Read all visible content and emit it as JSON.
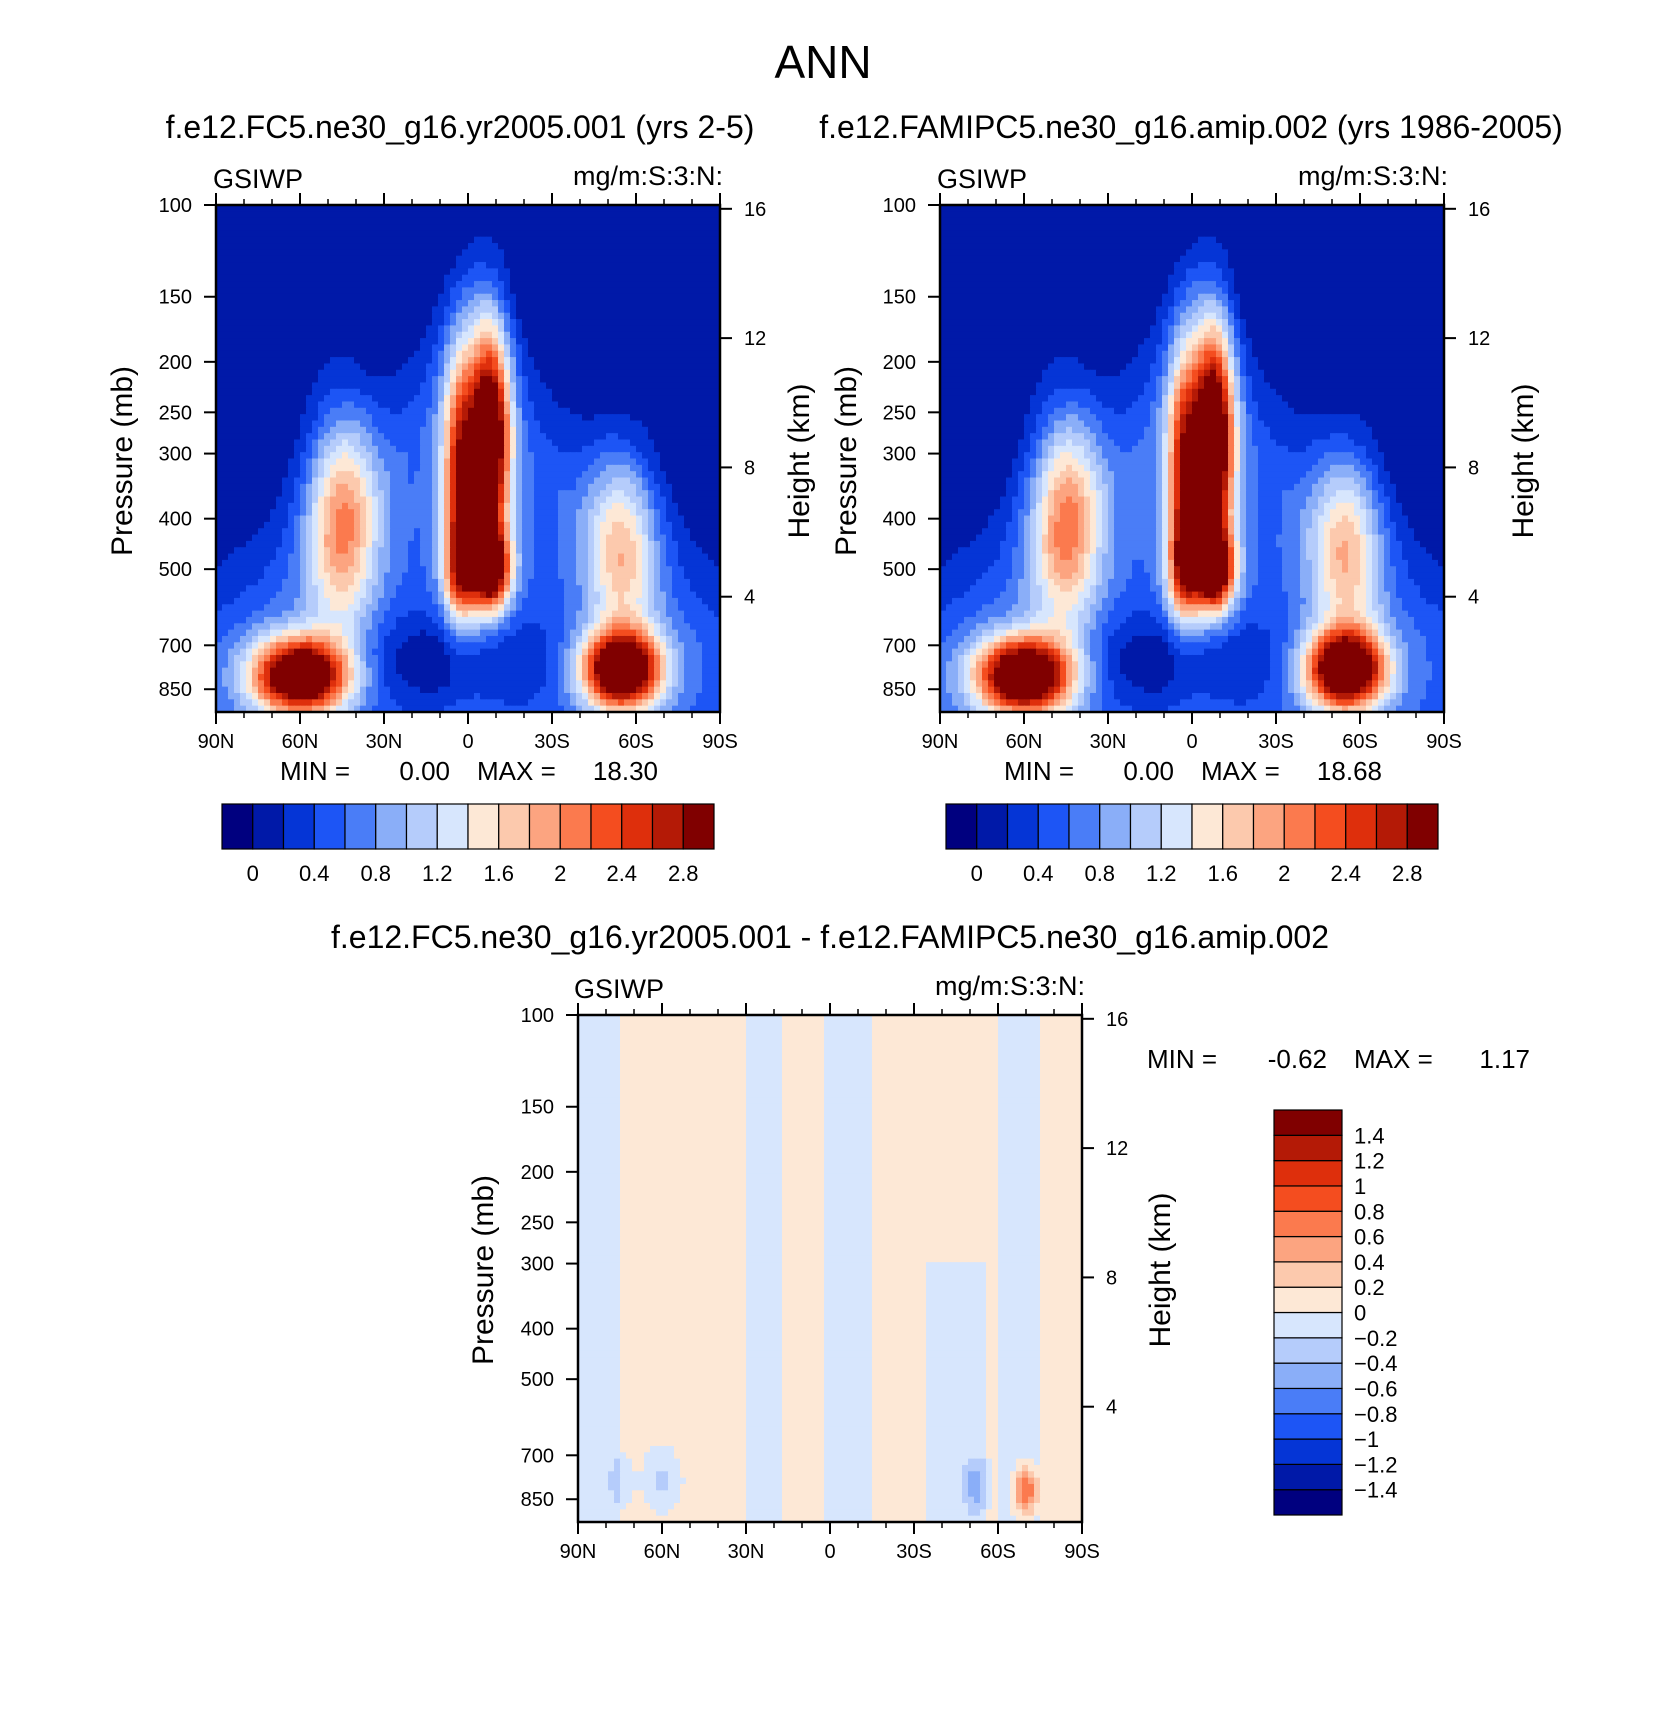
{
  "figure": {
    "title": "ANN"
  },
  "chart_data": [
    {
      "type": "heatmap",
      "id": "panel1",
      "subtitle": "f.e12.FC5.ne30_g16.yr2005.001 (yrs 2-5)",
      "left_label": "GSIWP",
      "right_label": "mg/m:S:3:N:",
      "ylabel": "Pressure (mb)",
      "y2label": "Height (km)",
      "x_ticks": [
        "90N",
        "60N",
        "30N",
        "0",
        "30S",
        "60S",
        "90S"
      ],
      "y_ticks": [
        "100",
        "150",
        "200",
        "250",
        "300",
        "400",
        "500",
        "700",
        "850"
      ],
      "y2_ticks": [
        "16",
        "12",
        "8",
        "4"
      ],
      "stats": {
        "min_label": "MIN =",
        "min": "0.00",
        "max_label": "MAX =",
        "max": "18.30"
      },
      "colorbar": {
        "orientation": "horizontal",
        "labels": [
          "0",
          "0.4",
          "0.8",
          "1.2",
          "1.6",
          "2",
          "2.4",
          "2.8"
        ],
        "colors": [
          "#00007f",
          "#0019a8",
          "#0535d6",
          "#1d55f5",
          "#4a7df7",
          "#8aaef8",
          "#b5ccfb",
          "#d7e6fd",
          "#fde8d6",
          "#fcc9ad",
          "#fca480",
          "#fb7a4e",
          "#f44d1f",
          "#de2f0c",
          "#b41a06",
          "#800000"
        ]
      },
      "features": [
        {
          "name": "tropical-upper-maximum",
          "lat": -8,
          "p": 270,
          "value": 3.0
        },
        {
          "name": "tropical-lower-maximum",
          "lat": -8,
          "p": 500,
          "value": 2.9
        },
        {
          "name": "nh-boundary-layer-maximum",
          "lat": 60,
          "p": 790,
          "value": 3.0
        },
        {
          "name": "sh-boundary-layer-maximum",
          "lat": -55,
          "p": 780,
          "value": 3.0
        }
      ]
    },
    {
      "type": "heatmap",
      "id": "panel2",
      "subtitle": "f.e12.FAMIPC5.ne30_g16.amip.002 (yrs 1986-2005)",
      "left_label": "GSIWP",
      "right_label": "mg/m:S:3:N:",
      "ylabel": "Pressure (mb)",
      "y2label": "Height (km)",
      "x_ticks": [
        "90N",
        "60N",
        "30N",
        "0",
        "30S",
        "60S",
        "90S"
      ],
      "y_ticks": [
        "100",
        "150",
        "200",
        "250",
        "300",
        "400",
        "500",
        "700",
        "850"
      ],
      "y2_ticks": [
        "16",
        "12",
        "8",
        "4"
      ],
      "stats": {
        "min_label": "MIN =",
        "min": "0.00",
        "max_label": "MAX =",
        "max": "18.68"
      },
      "colorbar": {
        "orientation": "horizontal",
        "labels": [
          "0",
          "0.4",
          "0.8",
          "1.2",
          "1.6",
          "2",
          "2.4",
          "2.8"
        ],
        "colors": [
          "#00007f",
          "#0019a8",
          "#0535d6",
          "#1d55f5",
          "#4a7df7",
          "#8aaef8",
          "#b5ccfb",
          "#d7e6fd",
          "#fde8d6",
          "#fcc9ad",
          "#fca480",
          "#fb7a4e",
          "#f44d1f",
          "#de2f0c",
          "#b41a06",
          "#800000"
        ]
      },
      "features": [
        {
          "name": "tropical-upper-maximum",
          "lat": -8,
          "p": 270,
          "value": 3.0
        },
        {
          "name": "tropical-lower-maximum",
          "lat": -8,
          "p": 500,
          "value": 2.9
        },
        {
          "name": "nh-boundary-layer-maximum",
          "lat": 60,
          "p": 790,
          "value": 3.0
        },
        {
          "name": "sh-boundary-layer-maximum",
          "lat": -55,
          "p": 780,
          "value": 3.0
        }
      ]
    },
    {
      "type": "heatmap",
      "id": "panel3",
      "subtitle": "f.e12.FC5.ne30_g16.yr2005.001 - f.e12.FAMIPC5.ne30_g16.amip.002",
      "left_label": "GSIWP",
      "right_label": "mg/m:S:3:N:",
      "ylabel": "Pressure (mb)",
      "y2label": "Height (km)",
      "x_ticks": [
        "90N",
        "60N",
        "30N",
        "0",
        "30S",
        "60S",
        "90S"
      ],
      "y_ticks": [
        "100",
        "150",
        "200",
        "250",
        "300",
        "400",
        "500",
        "700",
        "850"
      ],
      "y2_ticks": [
        "16",
        "12",
        "8",
        "4"
      ],
      "stats": {
        "min_label": "MIN =",
        "min": "-0.62",
        "max_label": "MAX =",
        "max": "1.17"
      },
      "colorbar": {
        "orientation": "vertical",
        "labels": [
          "-1.4",
          "-1.2",
          "-1",
          "-0.8",
          "-0.6",
          "-0.4",
          "-0.2",
          "0",
          "0.2",
          "0.4",
          "0.6",
          "0.8",
          "1",
          "1.2",
          "1.4"
        ],
        "colors": [
          "#00007f",
          "#0019a8",
          "#0535d6",
          "#1d55f5",
          "#4a7df7",
          "#8aaef8",
          "#b5ccfb",
          "#d7e6fd",
          "#fde8d6",
          "#fcc9ad",
          "#fca480",
          "#fb7a4e",
          "#f44d1f",
          "#de2f0c",
          "#b41a06",
          "#800000"
        ]
      },
      "features": [
        {
          "name": "sh-boundary-layer-positive-difference",
          "lat": -70,
          "p": 830,
          "value": 1.17
        },
        {
          "name": "sh-boundary-layer-negative-difference",
          "lat": -52,
          "p": 800,
          "value": -0.5
        }
      ]
    }
  ]
}
